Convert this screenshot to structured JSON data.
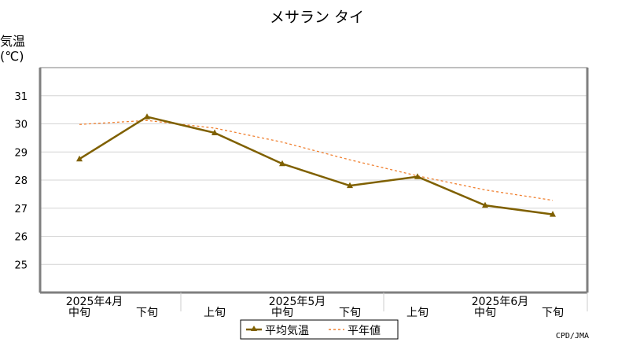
{
  "chart_data": {
    "type": "line",
    "title": "メサラン タイ",
    "ylabel": "気温",
    "yunit": "(℃)",
    "ylim": [
      24,
      32
    ],
    "yticks": [
      25,
      26,
      27,
      28,
      29,
      30,
      31
    ],
    "grid": true,
    "categories": [
      "中旬",
      "下旬",
      "上旬",
      "中旬",
      "下旬",
      "上旬",
      "中旬",
      "下旬"
    ],
    "month_labels": [
      {
        "label": "2025年4月",
        "at": 0
      },
      {
        "label": "2025年5月",
        "at": 3
      },
      {
        "label": "2025年6月",
        "at": 6
      }
    ],
    "series": [
      {
        "name": "平均気温",
        "values": [
          28.75,
          30.25,
          29.68,
          28.58,
          27.8,
          28.12,
          27.1,
          26.78
        ],
        "color": "#7f6000",
        "style": "solid",
        "marker": "triangle"
      },
      {
        "name": "平年値",
        "values": [
          29.98,
          30.12,
          29.85,
          29.35,
          28.72,
          28.15,
          27.65,
          27.28
        ],
        "color": "#f08030",
        "style": "dashed",
        "marker": "none"
      }
    ],
    "legend_position": "bottom-center",
    "credit": "CPD/JMA"
  }
}
